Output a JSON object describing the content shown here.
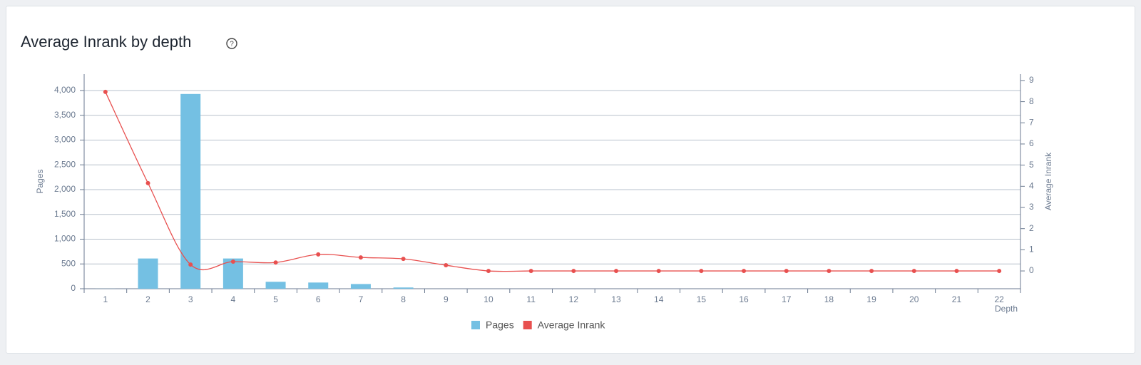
{
  "chart_data": {
    "type": "bar-line",
    "title": "Average Inrank by depth",
    "categories": [
      1,
      2,
      3,
      4,
      5,
      6,
      7,
      8,
      9,
      10,
      11,
      12,
      13,
      14,
      15,
      16,
      17,
      18,
      19,
      20,
      21,
      22
    ],
    "x_label": "Depth",
    "y_label": "Pages",
    "y2_label": "Average Inrank",
    "series": [
      {
        "name": "Pages",
        "type": "bar",
        "color": "#74c0e3",
        "values": [
          1,
          610,
          3930,
          610,
          140,
          125,
          95,
          25,
          0,
          0,
          0,
          0,
          0,
          0,
          0,
          0,
          0,
          0,
          0,
          0,
          0,
          0
        ]
      },
      {
        "name": "Average Inrank",
        "type": "line",
        "axis": "y2",
        "color": "#e8504f",
        "values": [
          8.46,
          4.15,
          0.3,
          0.44,
          0.4,
          0.78,
          0.64,
          0.57,
          0.27,
          0,
          0,
          0,
          0,
          0,
          0,
          0,
          0,
          0,
          0,
          0,
          0,
          0
        ]
      }
    ],
    "ylim": [
      0,
      4330
    ],
    "yticks": [
      0,
      {
        "value": 500,
        "label": "500"
      },
      {
        "value": 1000,
        "label": "1,000"
      },
      {
        "value": 1500,
        "label": "1,500"
      },
      {
        "value": 2000,
        "label": "2,000"
      },
      {
        "value": 2500,
        "label": "2,500"
      },
      {
        "value": 3000,
        "label": "3,000"
      },
      {
        "value": 3500,
        "label": "3,500"
      },
      {
        "value": 4000,
        "label": "4,000"
      }
    ],
    "y2lim": [
      -0.84,
      9.3
    ],
    "y2ticks": [
      0,
      1,
      2,
      3,
      4,
      5,
      6,
      7,
      8,
      9
    ],
    "grid": true
  }
}
